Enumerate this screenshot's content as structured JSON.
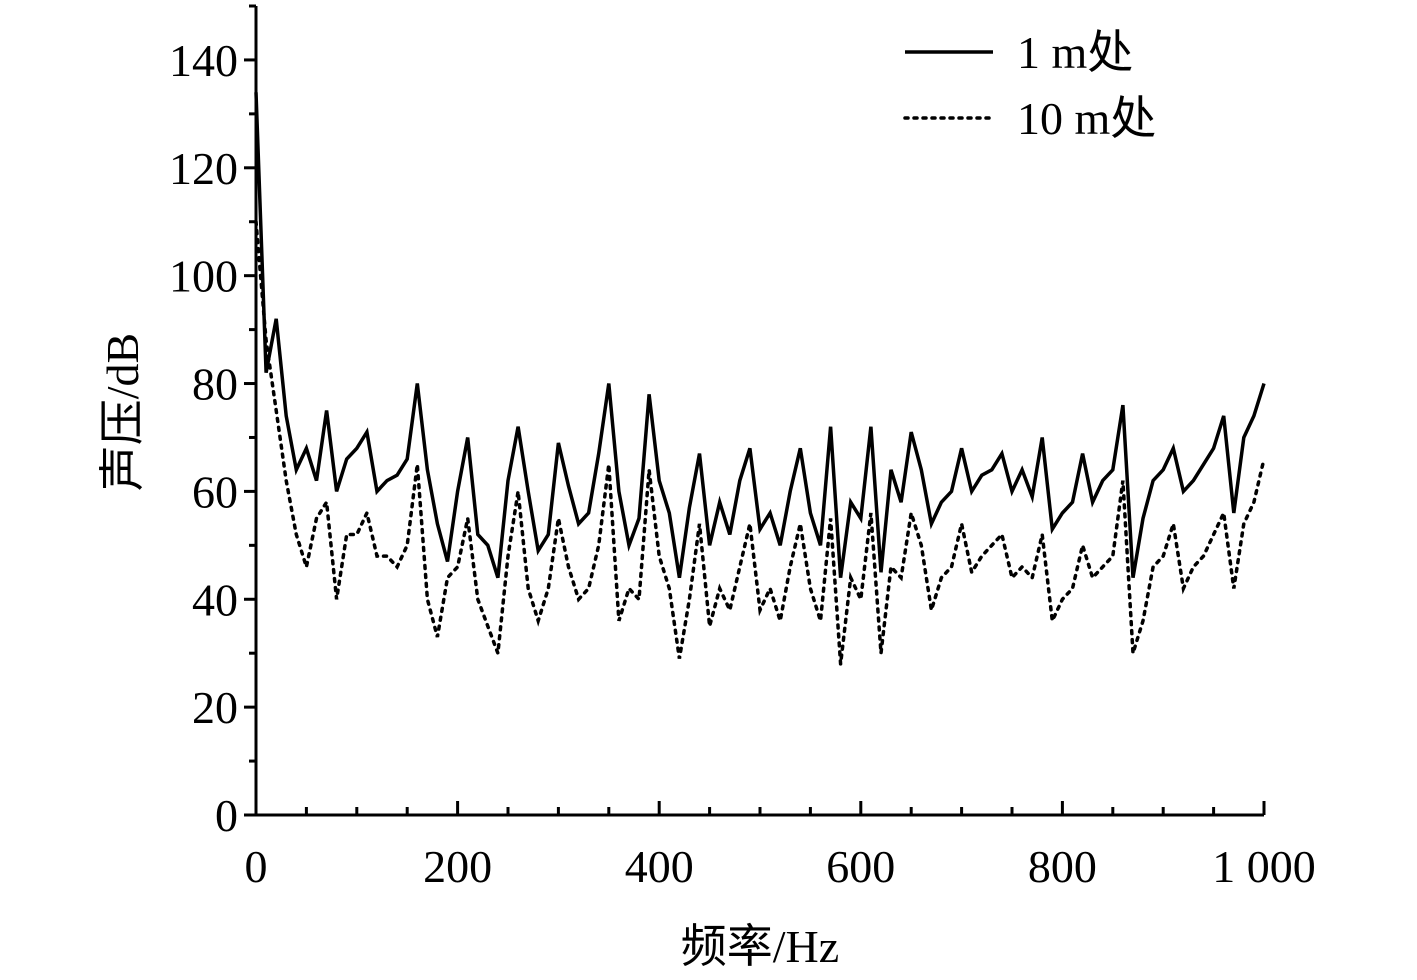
{
  "chart_data": {
    "type": "line",
    "xlabel": "频率/Hz",
    "ylabel": "声压/dB",
    "x": [
      0,
      10,
      20,
      30,
      40,
      50,
      60,
      70,
      80,
      90,
      100,
      110,
      120,
      130,
      140,
      150,
      160,
      170,
      180,
      190,
      200,
      210,
      220,
      230,
      240,
      250,
      260,
      270,
      280,
      290,
      300,
      310,
      320,
      330,
      340,
      350,
      360,
      370,
      380,
      390,
      400,
      410,
      420,
      430,
      440,
      450,
      460,
      470,
      480,
      490,
      500,
      510,
      520,
      530,
      540,
      550,
      560,
      570,
      580,
      590,
      600,
      610,
      620,
      630,
      640,
      650,
      660,
      670,
      680,
      690,
      700,
      710,
      720,
      730,
      740,
      750,
      760,
      770,
      780,
      790,
      800,
      810,
      820,
      830,
      840,
      850,
      860,
      870,
      880,
      890,
      900,
      910,
      920,
      930,
      940,
      950,
      960,
      970,
      980,
      990,
      1000
    ],
    "series": [
      {
        "name": "1 m处",
        "color": "#000000",
        "style": "solid",
        "values": [
          134,
          82,
          92,
          74,
          64,
          68,
          62,
          75,
          60,
          66,
          68,
          71,
          60,
          62,
          63,
          66,
          80,
          64,
          54,
          47,
          60,
          70,
          52,
          50,
          44,
          62,
          72,
          60,
          49,
          52,
          69,
          61,
          54,
          56,
          67,
          80,
          60,
          50,
          55,
          78,
          62,
          56,
          44,
          57,
          67,
          50,
          58,
          52,
          62,
          68,
          53,
          56,
          50,
          60,
          68,
          56,
          50,
          72,
          44,
          58,
          55,
          72,
          45,
          64,
          58,
          71,
          64,
          54,
          58,
          60,
          68,
          60,
          63,
          64,
          67,
          60,
          64,
          59,
          70,
          53,
          56,
          58,
          67,
          58,
          62,
          64,
          76,
          44,
          55,
          62,
          64,
          68,
          60,
          62,
          65,
          68,
          74,
          56,
          70,
          74,
          80
        ]
      },
      {
        "name": "10 m处",
        "color": "#000000",
        "style": "dotted",
        "values": [
          110,
          88,
          75,
          62,
          52,
          46,
          55,
          58,
          40,
          52,
          52,
          56,
          48,
          48,
          46,
          50,
          65,
          40,
          33,
          44,
          46,
          55,
          40,
          35,
          30,
          48,
          60,
          42,
          36,
          42,
          55,
          46,
          40,
          42,
          50,
          65,
          36,
          42,
          40,
          64,
          48,
          42,
          29,
          40,
          54,
          35,
          42,
          38,
          46,
          54,
          38,
          42,
          36,
          46,
          54,
          42,
          36,
          55,
          28,
          44,
          40,
          56,
          30,
          46,
          44,
          56,
          50,
          38,
          44,
          46,
          54,
          45,
          48,
          50,
          52,
          44,
          46,
          44,
          52,
          36,
          40,
          42,
          50,
          44,
          46,
          48,
          62,
          30,
          36,
          46,
          48,
          54,
          42,
          46,
          48,
          52,
          56,
          42,
          54,
          58,
          66
        ]
      }
    ],
    "xlim": [
      0,
      1000
    ],
    "ylim": [
      0,
      150
    ],
    "xticks": [
      0,
      200,
      400,
      600,
      800,
      {
        "value": 1000,
        "label": "1 000"
      }
    ],
    "yticks": [
      0,
      20,
      40,
      60,
      80,
      100,
      120,
      140
    ],
    "x_minor_ticks": [
      50,
      100,
      150,
      250,
      300,
      350,
      450,
      500,
      550,
      650,
      700,
      750,
      850,
      900,
      950
    ],
    "y_minor_ticks": [
      10,
      30,
      50,
      70,
      90,
      110,
      130,
      150
    ],
    "legend": "upper right",
    "grid": false
  }
}
